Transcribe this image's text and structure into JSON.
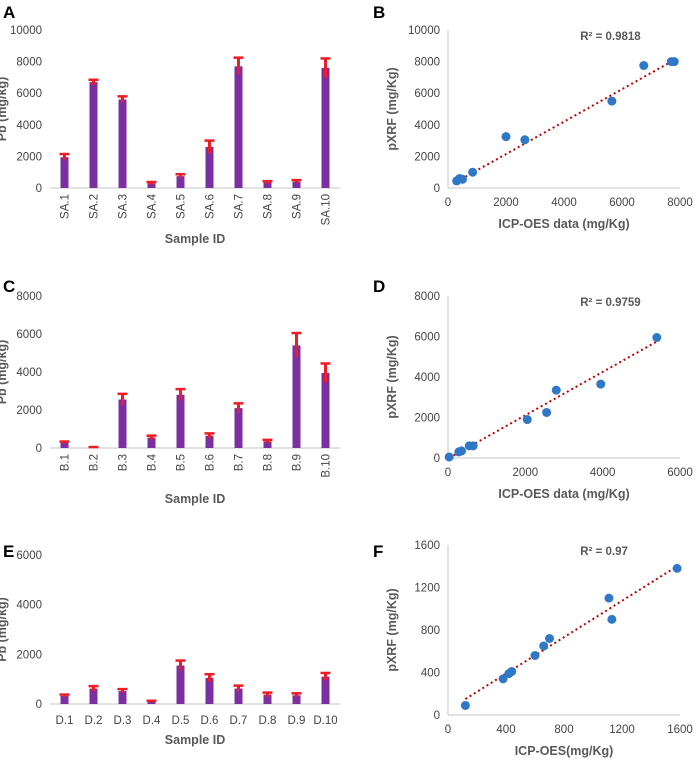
{
  "chart_data": [
    {
      "panel": "A",
      "type": "bar",
      "categories": [
        "SA.1",
        "SA.2",
        "SA.3",
        "SA.4",
        "SA.5",
        "SA.6",
        "SA.7",
        "SA.8",
        "SA.9",
        "SA.10"
      ],
      "values": [
        1950,
        6700,
        5600,
        300,
        750,
        2600,
        7700,
        350,
        400,
        7600
      ],
      "errors": [
        200,
        150,
        200,
        80,
        120,
        400,
        550,
        80,
        100,
        600
      ],
      "xlabel": "Sample ID",
      "ylabel": "Pb (mg/kg)",
      "ylim": [
        0,
        10000
      ],
      "yticks": [
        0,
        2000,
        4000,
        6000,
        8000,
        10000
      ],
      "bar_color": "#7b2fa0",
      "error_color": "#ee1c25"
    },
    {
      "panel": "B",
      "type": "scatter",
      "x": [
        300,
        400,
        500,
        850,
        2000,
        2650,
        5650,
        6750,
        7700,
        7800
      ],
      "y": [
        450,
        600,
        550,
        1000,
        3250,
        3050,
        5500,
        7750,
        8000,
        8000
      ],
      "trendline": [
        [
          300,
          400
        ],
        [
          7800,
          8100
        ]
      ],
      "annotation": "R² = 0.9818",
      "xlabel": "ICP-OES data (mg/Kg)",
      "ylabel": "pXRF  (mg/Kg)",
      "xlim": [
        0,
        8000
      ],
      "ylim": [
        0,
        10000
      ],
      "xticks": [
        0,
        2000,
        4000,
        6000,
        8000
      ],
      "yticks": [
        0,
        2000,
        4000,
        6000,
        8000,
        10000
      ],
      "point_color": "#2e78c7",
      "trend_color": "#c00000"
    },
    {
      "panel": "C",
      "type": "bar",
      "categories": [
        "B.1",
        "B.2",
        "B.3",
        "B.4",
        "B.5",
        "B.6",
        "B.7",
        "B.8",
        "B.9",
        "B.10"
      ],
      "values": [
        280,
        30,
        2550,
        550,
        2800,
        650,
        2100,
        350,
        5400,
        3950
      ],
      "errors": [
        60,
        20,
        300,
        100,
        300,
        120,
        250,
        80,
        650,
        500
      ],
      "xlabel": "Sample ID",
      "ylabel": "Pb (mg/kg)",
      "ylim": [
        0,
        8000
      ],
      "yticks": [
        0,
        2000,
        4000,
        6000,
        8000
      ],
      "bar_color": "#7b2fa0",
      "error_color": "#ee1c25"
    },
    {
      "panel": "D",
      "type": "scatter",
      "x": [
        30,
        280,
        350,
        550,
        650,
        2050,
        2550,
        2800,
        3950,
        5400
      ],
      "y": [
        50,
        300,
        350,
        600,
        600,
        1900,
        2250,
        3350,
        3650,
        5950
      ],
      "trendline": [
        [
          30,
          0
        ],
        [
          5400,
          5750
        ]
      ],
      "annotation": "R² = 0.9759",
      "xlabel": "ICP-OES data (mg/Kg)",
      "ylabel": "pXRF (mg/Kg)",
      "xlim": [
        0,
        6000
      ],
      "ylim": [
        0,
        8000
      ],
      "xticks": [
        0,
        2000,
        4000,
        6000
      ],
      "yticks": [
        0,
        2000,
        4000,
        6000,
        8000
      ],
      "point_color": "#2e78c7",
      "trend_color": "#c00000"
    },
    {
      "panel": "E",
      "type": "bar",
      "categories": [
        "D.1",
        "D.2",
        "D.3",
        "D.4",
        "D.5",
        "D.6",
        "D.7",
        "D.8",
        "D.9",
        "D.10"
      ],
      "values": [
        330,
        620,
        520,
        100,
        1550,
        1050,
        620,
        380,
        350,
        1100
      ],
      "errors": [
        50,
        100,
        80,
        30,
        200,
        150,
        120,
        80,
        80,
        150
      ],
      "xlabel": "Sample ID",
      "ylabel": "Pb (mg/kg)",
      "ylim": [
        0,
        6000
      ],
      "yticks": [
        0,
        2000,
        4000,
        6000
      ],
      "bar_color": "#7b2fa0",
      "error_color": "#ee1c25"
    },
    {
      "panel": "F",
      "type": "scatter",
      "x": [
        120,
        380,
        420,
        440,
        600,
        660,
        700,
        1110,
        1130,
        1580
      ],
      "y": [
        90,
        340,
        390,
        410,
        560,
        650,
        720,
        1100,
        900,
        1380
      ],
      "trendline": [
        [
          120,
          150
        ],
        [
          1580,
          1400
        ]
      ],
      "annotation": "R² = 0.97",
      "xlabel": "ICP-OES(mg/Kg)",
      "ylabel": "pXRF (mg/Kg)",
      "xlim": [
        0,
        1600
      ],
      "ylim": [
        0,
        1600
      ],
      "xticks": [
        0,
        400,
        800,
        1200,
        1600
      ],
      "yticks": [
        0,
        400,
        800,
        1200,
        1600
      ],
      "point_color": "#2e78c7",
      "trend_color": "#c00000"
    }
  ]
}
